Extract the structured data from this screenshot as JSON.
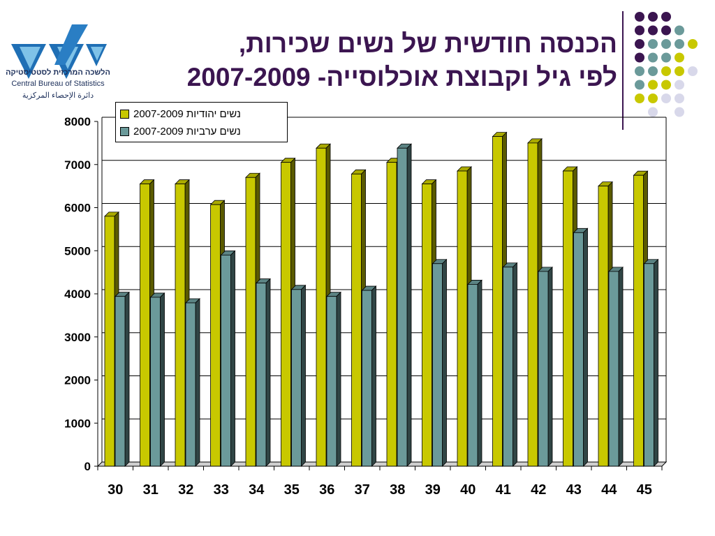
{
  "logo": {
    "name_he": "הלשכה המרכזית לסטטיסטיקה",
    "name_en": "Central Bureau of Statistics",
    "name_ar": "دائرة الإحصاء المركزية"
  },
  "title": {
    "line1": "הכנסה חודשית של נשים שכירות,",
    "line2": "לפי גיל וקבוצת אוכלוסייה- 2007-2009"
  },
  "colors": {
    "title": "#3b1550",
    "jewish": "#c8c800",
    "arab": "#6b9a9a",
    "dot_purple": "#3b1550",
    "dot_teal": "#6b9a9a",
    "dot_yellow": "#c8c800",
    "dot_lavender": "#d8d8ea"
  },
  "chart_data": {
    "type": "bar",
    "categories": [
      "30",
      "31",
      "32",
      "33",
      "34",
      "35",
      "36",
      "37",
      "38",
      "39",
      "40",
      "41",
      "42",
      "43",
      "44",
      "45"
    ],
    "series": [
      {
        "name": "נשים יהודיות 2007-2009",
        "values": [
          5800,
          6550,
          6550,
          6070,
          6700,
          7050,
          7380,
          6780,
          7050,
          6550,
          6850,
          7650,
          7500,
          6850,
          6500,
          6750
        ]
      },
      {
        "name": "נשים ערביות 2007-2009",
        "values": [
          3940,
          3920,
          3790,
          4900,
          4250,
          4100,
          3940,
          4080,
          7380,
          4700,
          4220,
          4620,
          4520,
          5420,
          4520,
          4700
        ]
      }
    ],
    "xlabel": "",
    "ylabel": "",
    "ylim": [
      0,
      8000
    ],
    "yticks": [
      "0",
      "1000",
      "2000",
      "3000",
      "4000",
      "5000",
      "6000",
      "7000",
      "8000"
    ],
    "grid": true,
    "legend_position": "top-left"
  }
}
